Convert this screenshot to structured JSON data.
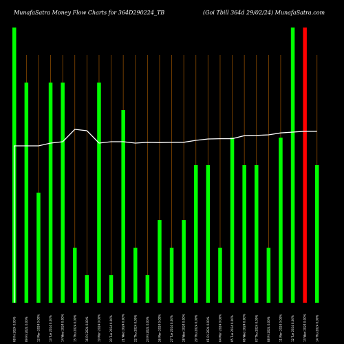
{
  "chart_data": {
    "type": "bar",
    "title": "MunafaSatra  Money Flow  Charts for 364D290224_TB",
    "subtitle": "(Goi   Tbill 364d 29/02/24) MunafaSatra.com",
    "categories": [
      "08-02-24",
      "09-02-24",
      "12-02-24",
      "13-02-24",
      "14-02-24",
      "15-02-24",
      "16-02-24",
      "19-02-24",
      "20-02-24",
      "21-02-24",
      "22-02-24",
      "23-02-24",
      "26-02-24",
      "27-02-24",
      "28-02-24",
      "29-02-24",
      "01-03-24",
      "04-03-24",
      "05-03-24",
      "06-03-24",
      "07-03-24",
      "08-03-24",
      "11-03-24",
      "12-03-24",
      "13-03-24",
      "14-03-24"
    ],
    "tick_labels": [
      "08 Fri 2024 0.00%",
      "09 Fri 2024 0.00%",
      "12 Mon 2024 0.00%",
      "13 Tue 2024 0.00%",
      "14 Wed 2024 0.00%",
      "15 Thu 2024 0.00%",
      "16 Fri 2024 0.00%",
      "19 Mon 2024 0.00%",
      "20 Tue 2024 0.00%",
      "21 Wed 2024 0.00%",
      "22 Thu 2024 0.00%",
      "23 Fri 2024 0.00%",
      "26 Mon 2024 0.00%",
      "27 Tue 2024 0.00%",
      "28 Wed 2024 0.00%",
      "29 Thu 2024 0.00%",
      "01 Fri 2024 0.00%",
      "04 Mon 2024 0.00%",
      "05 Tue 2024 0.00%",
      "06 Wed 2024 0.00%",
      "07 Thu 2024 0.00%",
      "08 Fri 2024 0.00%",
      "11 Mon 2024 0.00%",
      "12 Tue 2024 0.00%",
      "13 Wed 2024 0.00%",
      "14 Thu 2024 0.00%"
    ],
    "values": [
      100,
      80,
      40,
      80,
      80,
      20,
      10,
      80,
      10,
      70,
      20,
      10,
      30,
      20,
      30,
      50,
      50,
      20,
      60,
      50,
      50,
      20,
      60,
      100,
      100,
      50
    ],
    "colors": [
      "green",
      "green",
      "green",
      "green",
      "green",
      "green",
      "green",
      "green",
      "green",
      "green",
      "green",
      "green",
      "green",
      "green",
      "green",
      "green",
      "green",
      "green",
      "green",
      "green",
      "green",
      "green",
      "green",
      "green",
      "red",
      "green"
    ],
    "line": [
      57,
      57,
      57,
      58,
      58.5,
      63,
      62.5,
      58,
      58.5,
      58.5,
      58,
      58.3,
      58.2,
      58.3,
      58.3,
      59,
      59.5,
      59.6,
      59.6,
      60.7,
      60.8,
      61,
      61.7,
      62,
      62.3,
      62.3
    ],
    "ylim": [
      0,
      110
    ],
    "grid": true,
    "palette": {
      "green": "#00ff00",
      "red": "#ff0000",
      "line": "#ffffff",
      "grid": "#8a4a00",
      "background": "#000000"
    }
  }
}
